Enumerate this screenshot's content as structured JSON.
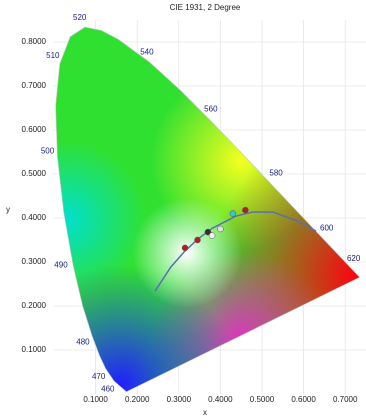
{
  "chart_data": {
    "type": "chromaticity",
    "title": "CIE 1931, 2 Degree",
    "x_label": "x",
    "y_label": "y",
    "xlim": [
      0,
      0.75
    ],
    "ylim": [
      0,
      0.85
    ],
    "xticks": [
      {
        "value": 0.1,
        "label": "0.1000"
      },
      {
        "value": 0.2,
        "label": "0.2000"
      },
      {
        "value": 0.3,
        "label": "0.3000"
      },
      {
        "value": 0.4,
        "label": "0.4000"
      },
      {
        "value": 0.5,
        "label": "0.5000"
      },
      {
        "value": 0.6,
        "label": "0.6000"
      },
      {
        "value": 0.7,
        "label": "0.7000"
      }
    ],
    "yticks": [
      {
        "value": 0.1,
        "label": "0.1000"
      },
      {
        "value": 0.2,
        "label": "0.2000"
      },
      {
        "value": 0.3,
        "label": "0.3000"
      },
      {
        "value": 0.4,
        "label": "0.4000"
      },
      {
        "value": 0.5,
        "label": "0.5000"
      },
      {
        "value": 0.6,
        "label": "0.6000"
      },
      {
        "value": 0.7,
        "label": "0.7000"
      },
      {
        "value": 0.8,
        "label": "0.8000"
      }
    ],
    "grid": true,
    "series": [
      {
        "color": "#c8c8c8",
        "labels": [
          null,
          "460",
          "470",
          null,
          "480",
          null,
          "490",
          null,
          "500",
          null,
          "510",
          null,
          "520",
          null,
          null,
          "540",
          null,
          "560",
          null,
          "580",
          null,
          "600",
          null,
          "620",
          null,
          null
        ],
        "x": [
          0.1741,
          0.144,
          0.1241,
          0.1096,
          0.0913,
          0.0687,
          0.0454,
          0.0235,
          0.0082,
          0.0039,
          0.0139,
          0.0389,
          0.0743,
          0.1142,
          0.1547,
          0.2296,
          0.3016,
          0.3731,
          0.4441,
          0.5125,
          0.5752,
          0.627,
          0.6658,
          0.6915,
          0.719,
          0.7347
        ],
        "values": [
          0.005,
          0.0297,
          0.0578,
          0.0868,
          0.1327,
          0.2007,
          0.295,
          0.4127,
          0.5384,
          0.6548,
          0.7502,
          0.812,
          0.8338,
          0.8262,
          0.8059,
          0.7543,
          0.6923,
          0.6245,
          0.5547,
          0.4866,
          0.4242,
          0.3725,
          0.334,
          0.3083,
          0.2809,
          0.2653
        ]
      },
      {
        "color": "#5a6fb0",
        "x": [
          0.243,
          0.2807,
          0.3135,
          0.3451,
          0.3805,
          0.4369,
          0.477,
          0.5266,
          0.5857,
          0.63
        ],
        "values": [
          0.234,
          0.2884,
          0.3236,
          0.3516,
          0.3768,
          0.4041,
          0.4137,
          0.4133,
          0.3931,
          0.37
        ]
      },
      {
        "colors": [
          "#b02020",
          "#b02020",
          "#303030",
          "#e0e0e0",
          "#30c8d8",
          "#b02020",
          "#f0f0f0"
        ],
        "x": [
          0.315,
          0.345,
          0.37,
          0.4,
          0.43,
          0.46,
          0.38
        ],
        "values": [
          0.332,
          0.35,
          0.368,
          0.375,
          0.41,
          0.418,
          0.36
        ]
      }
    ]
  }
}
